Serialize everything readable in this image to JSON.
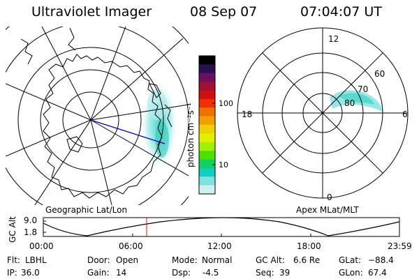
{
  "header": {
    "instrument": "Ultraviolet Imager",
    "date": "08 Sep 07",
    "time": "07:04:07 UT"
  },
  "colorbar": {
    "unit_label": "photon cm⁻²s⁻¹",
    "ticks": [
      "100",
      "10"
    ],
    "colors": [
      "#000000",
      "#2a1050",
      "#6a1060",
      "#a01030",
      "#d01010",
      "#f03000",
      "#f07000",
      "#f0a000",
      "#f0d000",
      "#e0f000",
      "#a0f000",
      "#50e000",
      "#10d060",
      "#10d0c0",
      "#80e0e0",
      "#d0f0f0"
    ]
  },
  "left_map": {
    "caption": "Geographic Lat/Lon"
  },
  "right_map": {
    "caption": "Apex MLat/MLT",
    "mlt_labels": {
      "top": "12",
      "right": "6",
      "bottom": "0",
      "left": "18"
    },
    "lat_labels": [
      "60",
      "70",
      "80"
    ]
  },
  "altitude_plot": {
    "ylabel": "GC Alt",
    "yticks": [
      "9.0",
      "1.8"
    ],
    "xticks": [
      "00:00",
      "06:00",
      "12:00",
      "18:00",
      "23:59"
    ]
  },
  "info": {
    "filter_label": "Flt:",
    "filter_value": "LBHL",
    "door_label": "Door:",
    "door_value": "Open",
    "mode_label": "Mode:",
    "mode_value": "Normal",
    "gcalt_label": "GC Alt:",
    "gcalt_value": "6.6 Re",
    "glat_label": "GLat:",
    "glat_value": "−88.4",
    "ip_label": "IP:",
    "ip_value": "36.0",
    "gain_label": "Gain:",
    "gain_value": "14",
    "dsp_label": "Dsp:",
    "dsp_value": "-4.5",
    "seq_label": "Seq:",
    "seq_value": "39",
    "glon_label": "GLon:",
    "glon_value": "67.4"
  }
}
